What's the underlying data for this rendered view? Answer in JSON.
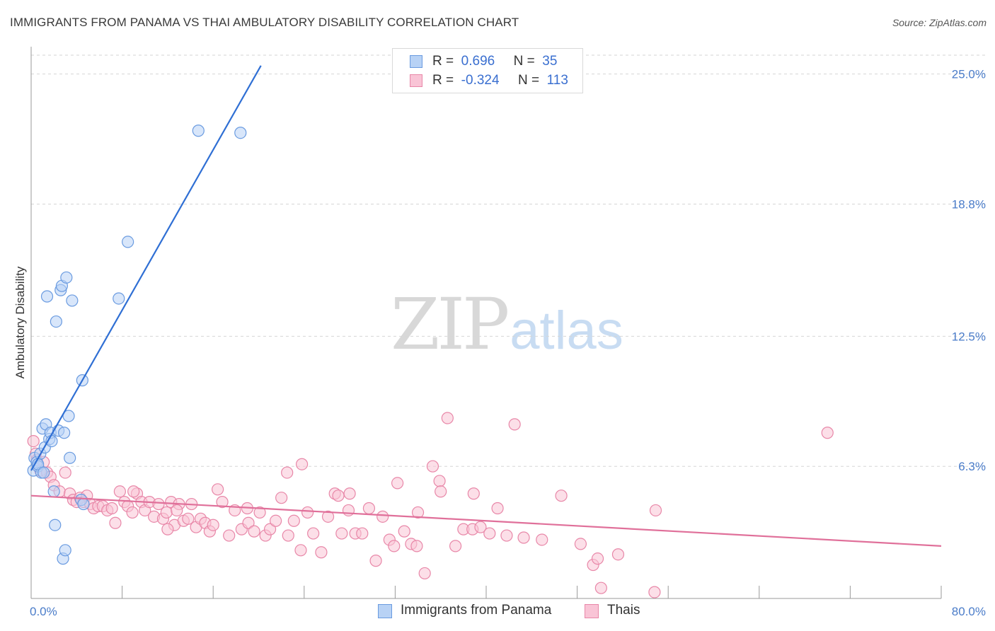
{
  "title": "IMMIGRANTS FROM PANAMA VS THAI AMBULATORY DISABILITY CORRELATION CHART",
  "source": "Source: ZipAtlas.com",
  "watermark": {
    "zip": "ZIP",
    "atlas": "atlas"
  },
  "legend": {
    "rows": [
      {
        "r_label": "R =",
        "r_value": "0.696",
        "n_label": "N =",
        "n_value": "35",
        "fill": "#b8d2f5",
        "stroke": "#6a9be0"
      },
      {
        "r_label": "R =",
        "r_value": "-0.324",
        "n_label": "N =",
        "n_value": "113",
        "fill": "#f9c4d6",
        "stroke": "#e887a8"
      }
    ]
  },
  "bottom_legend": [
    {
      "label": "Immigrants from Panama",
      "fill": "#b8d2f5",
      "stroke": "#6a9be0"
    },
    {
      "label": "Thais",
      "fill": "#f9c4d6",
      "stroke": "#e887a8"
    }
  ],
  "chart_data": {
    "type": "scatter",
    "title": "IMMIGRANTS FROM PANAMA VS THAI AMBULATORY DISABILITY CORRELATION CHART",
    "xlabel": "",
    "ylabel": "Ambulatory Disability",
    "xlim": [
      0,
      80
    ],
    "ylim": [
      0,
      25.9
    ],
    "x_ticks": [
      "0.0%",
      "80.0%"
    ],
    "y_ticks": [
      {
        "value": 6.3,
        "label": "6.3%"
      },
      {
        "value": 12.5,
        "label": "12.5%"
      },
      {
        "value": 18.8,
        "label": "18.8%"
      },
      {
        "value": 25.0,
        "label": "25.0%"
      }
    ],
    "grid": true,
    "series": [
      {
        "name": "Immigrants from Panama",
        "color": "#6a9be0",
        "fill": "#b8d2f5",
        "trend": {
          "x": [
            0,
            20.2
          ],
          "y": [
            6.1,
            25.4
          ],
          "color": "#2f6fd4"
        },
        "points": [
          [
            0.2,
            6.1
          ],
          [
            0.3,
            6.7
          ],
          [
            0.5,
            6.5
          ],
          [
            0.6,
            6.3
          ],
          [
            0.8,
            6.9
          ],
          [
            0.9,
            6.0
          ],
          [
            1.0,
            8.1
          ],
          [
            1.2,
            7.2
          ],
          [
            1.3,
            8.3
          ],
          [
            1.4,
            14.4
          ],
          [
            1.6,
            7.6
          ],
          [
            1.7,
            7.9
          ],
          [
            1.8,
            7.5
          ],
          [
            2.0,
            5.1
          ],
          [
            2.1,
            3.5
          ],
          [
            2.2,
            13.2
          ],
          [
            2.4,
            8.0
          ],
          [
            2.6,
            14.7
          ],
          [
            2.7,
            14.9
          ],
          [
            2.8,
            1.9
          ],
          [
            2.9,
            7.9
          ],
          [
            3.0,
            2.3
          ],
          [
            3.1,
            15.3
          ],
          [
            3.3,
            8.7
          ],
          [
            3.4,
            6.7
          ],
          [
            3.6,
            14.2
          ],
          [
            4.4,
            4.7
          ],
          [
            4.5,
            10.4
          ],
          [
            4.6,
            4.5
          ],
          [
            7.7,
            14.3
          ],
          [
            8.5,
            17.0
          ],
          [
            14.7,
            22.3
          ],
          [
            18.4,
            22.2
          ],
          [
            0.6,
            6.4
          ],
          [
            1.1,
            6.0
          ]
        ]
      },
      {
        "name": "Thais",
        "color": "#e887a8",
        "fill": "#f9c4d6",
        "trend": {
          "x": [
            0,
            80
          ],
          "y": [
            4.9,
            2.5
          ],
          "color": "#e0709a"
        },
        "points": [
          [
            0.2,
            7.5
          ],
          [
            0.4,
            6.9
          ],
          [
            0.5,
            6.6
          ],
          [
            0.8,
            6.1
          ],
          [
            1.1,
            6.5
          ],
          [
            1.4,
            6.0
          ],
          [
            1.7,
            5.8
          ],
          [
            2.0,
            5.4
          ],
          [
            2.5,
            5.1
          ],
          [
            3.0,
            6.0
          ],
          [
            3.4,
            5.0
          ],
          [
            3.7,
            4.7
          ],
          [
            4.0,
            4.6
          ],
          [
            4.3,
            4.8
          ],
          [
            4.6,
            4.6
          ],
          [
            4.9,
            4.9
          ],
          [
            5.2,
            4.5
          ],
          [
            5.5,
            4.3
          ],
          [
            5.9,
            4.4
          ],
          [
            6.3,
            4.4
          ],
          [
            6.7,
            4.2
          ],
          [
            7.1,
            4.3
          ],
          [
            7.4,
            3.6
          ],
          [
            7.8,
            5.1
          ],
          [
            8.2,
            4.6
          ],
          [
            8.5,
            4.4
          ],
          [
            8.9,
            4.1
          ],
          [
            9.3,
            5.0
          ],
          [
            9.7,
            4.6
          ],
          [
            10.0,
            4.2
          ],
          [
            10.4,
            4.6
          ],
          [
            10.8,
            3.9
          ],
          [
            11.2,
            4.5
          ],
          [
            11.6,
            3.8
          ],
          [
            11.9,
            4.1
          ],
          [
            12.3,
            4.6
          ],
          [
            12.6,
            3.5
          ],
          [
            13.0,
            4.5
          ],
          [
            13.4,
            3.7
          ],
          [
            13.8,
            3.8
          ],
          [
            14.1,
            4.5
          ],
          [
            14.5,
            3.4
          ],
          [
            14.9,
            3.8
          ],
          [
            15.3,
            3.6
          ],
          [
            15.7,
            3.2
          ],
          [
            16.4,
            5.2
          ],
          [
            16.8,
            4.6
          ],
          [
            17.4,
            3.0
          ],
          [
            17.9,
            4.2
          ],
          [
            18.5,
            3.3
          ],
          [
            19.1,
            3.6
          ],
          [
            19.6,
            3.2
          ],
          [
            20.1,
            4.1
          ],
          [
            20.6,
            3.0
          ],
          [
            21.0,
            3.3
          ],
          [
            21.5,
            3.7
          ],
          [
            22.0,
            4.8
          ],
          [
            22.6,
            3.0
          ],
          [
            23.1,
            3.7
          ],
          [
            23.7,
            2.3
          ],
          [
            24.3,
            4.1
          ],
          [
            24.8,
            3.1
          ],
          [
            25.5,
            2.2
          ],
          [
            26.1,
            3.9
          ],
          [
            26.7,
            5.0
          ],
          [
            27.3,
            3.1
          ],
          [
            27.9,
            4.2
          ],
          [
            28.5,
            3.1
          ],
          [
            29.1,
            3.1
          ],
          [
            29.7,
            4.3
          ],
          [
            30.3,
            1.8
          ],
          [
            30.9,
            3.9
          ],
          [
            31.5,
            2.8
          ],
          [
            32.2,
            5.5
          ],
          [
            32.8,
            3.2
          ],
          [
            33.4,
            2.6
          ],
          [
            34.0,
            4.1
          ],
          [
            34.6,
            1.2
          ],
          [
            35.3,
            6.3
          ],
          [
            35.9,
            5.6
          ],
          [
            36.6,
            8.6
          ],
          [
            37.3,
            2.5
          ],
          [
            38.0,
            3.3
          ],
          [
            38.8,
            3.3
          ],
          [
            39.5,
            3.4
          ],
          [
            40.3,
            3.1
          ],
          [
            41.0,
            4.3
          ],
          [
            41.8,
            3.0
          ],
          [
            42.5,
            8.3
          ],
          [
            43.3,
            2.9
          ],
          [
            44.9,
            2.8
          ],
          [
            46.6,
            4.9
          ],
          [
            48.3,
            2.6
          ],
          [
            49.4,
            1.6
          ],
          [
            49.8,
            1.9
          ],
          [
            50.1,
            0.5
          ],
          [
            51.6,
            2.1
          ],
          [
            54.8,
            0.3
          ],
          [
            54.9,
            4.2
          ],
          [
            70.0,
            7.9
          ],
          [
            12.0,
            3.3
          ],
          [
            19.0,
            4.3
          ],
          [
            28.0,
            5.0
          ],
          [
            22.5,
            6.0
          ],
          [
            27.0,
            4.9
          ],
          [
            31.9,
            2.5
          ],
          [
            36.0,
            5.1
          ],
          [
            38.9,
            5.0
          ],
          [
            16.0,
            3.5
          ],
          [
            12.8,
            4.2
          ],
          [
            9.0,
            5.1
          ],
          [
            33.9,
            2.5
          ],
          [
            23.8,
            6.4
          ]
        ]
      }
    ]
  }
}
